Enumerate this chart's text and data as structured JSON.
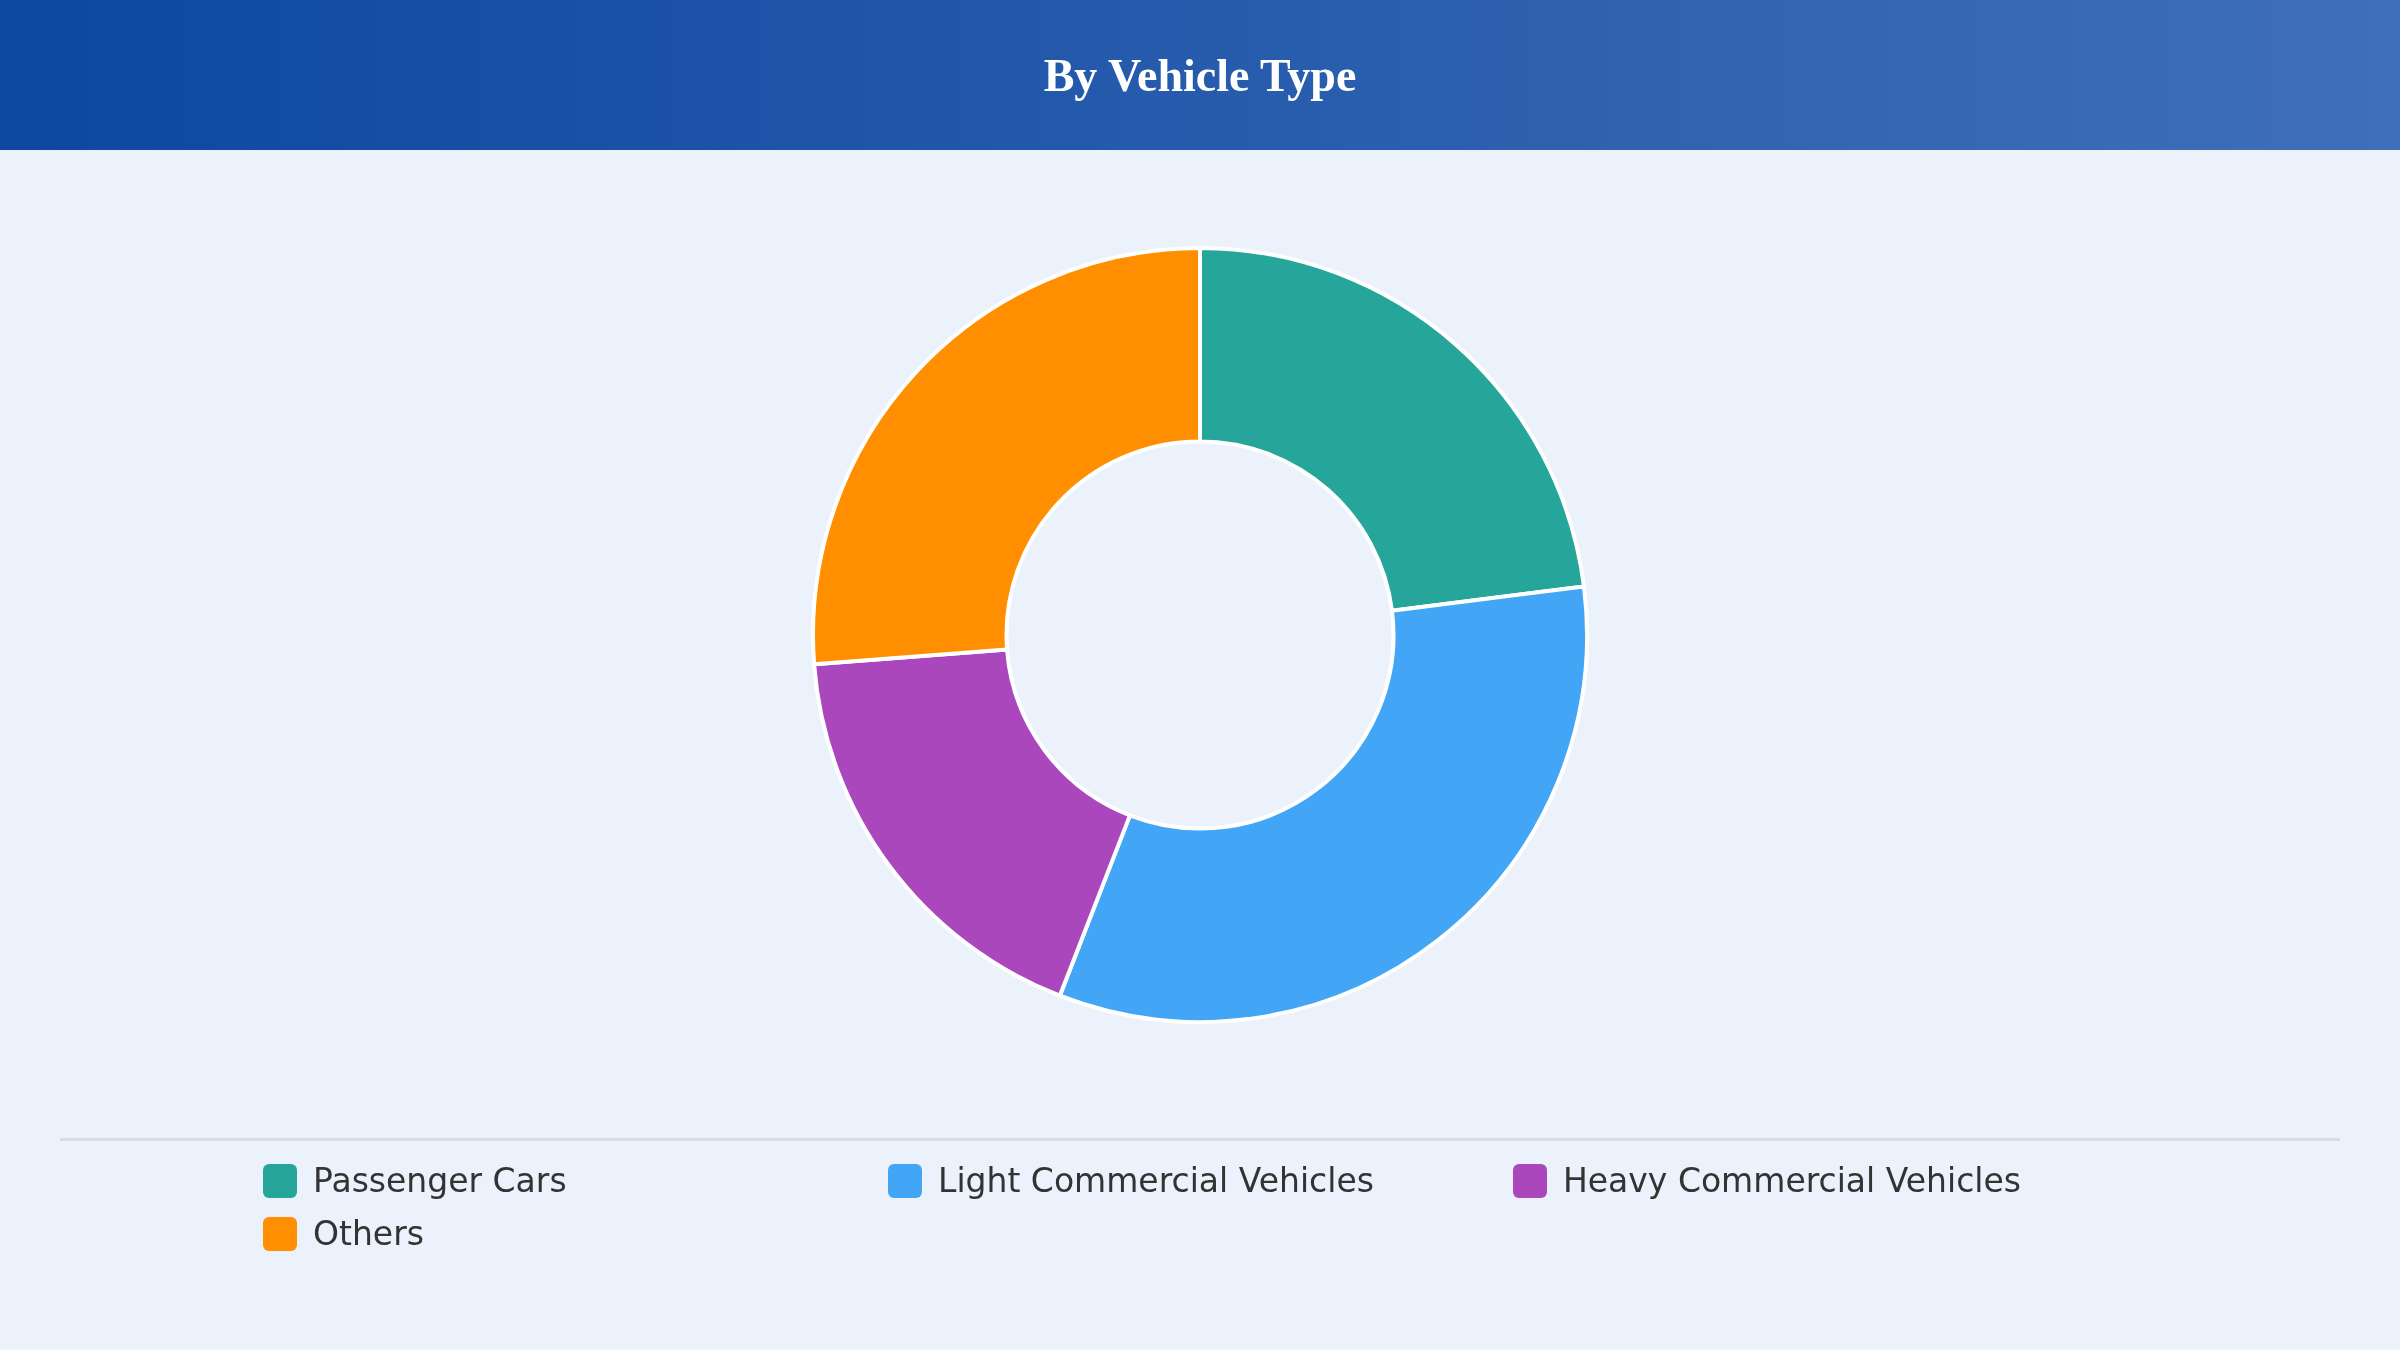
{
  "chart_data": {
    "type": "donut",
    "title": "By Vehicle Type",
    "categories": [
      "Passenger Cars",
      "Light Commercial Vehicles",
      "Heavy Commercial Vehicles",
      "Others"
    ],
    "values": [
      23,
      32.9,
      17.9,
      26.2
    ],
    "colors": [
      "#26a69a",
      "#42a5f5",
      "#ab47bc",
      "#ff8f00"
    ],
    "legend": "bottom"
  }
}
